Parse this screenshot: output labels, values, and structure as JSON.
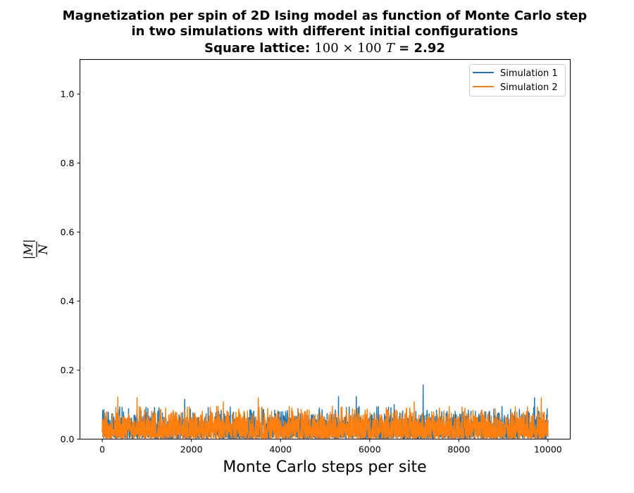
{
  "chart_data": {
    "type": "line",
    "title": [
      "Magnetization per spin of 2D Ising model as function of Monte Carlo step",
      "in two simulations with different initial configurations",
      "Square lattice: 100 × 100   T = 2.92"
    ],
    "title_line3": {
      "prefix": "Square lattice: ",
      "size": "100 × 100",
      "temp_symbol": "T",
      "temp_value": " = 2.92"
    },
    "xlabel": "Monte Carlo steps per site",
    "ylabel": {
      "numerator": "|M|",
      "denominator": "N"
    },
    "xlim": [
      -500,
      10500
    ],
    "ylim": [
      0,
      1.1
    ],
    "xticks": [
      0,
      2000,
      4000,
      6000,
      8000,
      10000
    ],
    "xtick_labels": [
      "0",
      "2000",
      "4000",
      "6000",
      "8000",
      "10000"
    ],
    "yticks": [
      0.0,
      0.2,
      0.4,
      0.6,
      0.8,
      1.0
    ],
    "ytick_labels": [
      "0.0",
      "0.2",
      "0.4",
      "0.6",
      "0.8",
      "1.0"
    ],
    "grid": false,
    "legend_position": "upper right",
    "series": [
      {
        "name": "Simulation 1",
        "color": "#1f77b4",
        "description": "noisy fluctuation around ~0.03, mostly below 0.10",
        "steps": 10000,
        "mean": 0.03,
        "max": 0.157,
        "max_at": 7200,
        "peaks": [
          [
            1850,
            0.115
          ],
          [
            5300,
            0.123
          ],
          [
            5700,
            0.123
          ],
          [
            6550,
            0.1
          ],
          [
            7200,
            0.157
          ],
          [
            9700,
            0.12
          ]
        ]
      },
      {
        "name": "Simulation 2",
        "color": "#ff7f0e",
        "description": "noisy fluctuation around ~0.03, mostly below 0.12",
        "steps": 10000,
        "mean": 0.03,
        "max": 0.122,
        "max_at": 350,
        "peaks": [
          [
            350,
            0.122
          ],
          [
            780,
            0.12
          ],
          [
            2720,
            0.108
          ],
          [
            3500,
            0.12
          ],
          [
            7000,
            0.108
          ],
          [
            9850,
            0.12
          ]
        ]
      }
    ]
  }
}
